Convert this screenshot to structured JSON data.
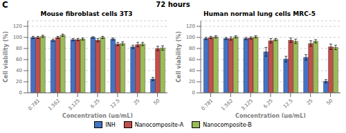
{
  "chart_data": [
    {
      "type": "bar",
      "title": "Mouse fibroblast cells 3T3",
      "annotations": [
        "C",
        "72 hours"
      ],
      "x_label": "Concentration (μg/mL)",
      "y_label": "Cell viability (%)",
      "categories": [
        "0.781",
        "1.562",
        "3.125",
        "6.25",
        "12.5",
        "25",
        "50"
      ],
      "ylim": [
        0,
        130
      ],
      "yticks": [
        0,
        20,
        40,
        60,
        80,
        100,
        120
      ],
      "grid": true,
      "series": [
        {
          "name": "INH",
          "color": "#4472C4",
          "values": [
            100,
            95,
            96,
            100,
            97,
            83,
            25
          ],
          "errors": [
            2,
            2,
            2,
            1.5,
            2,
            3,
            3
          ]
        },
        {
          "name": "Nanocomposite-A",
          "color": "#C0504D",
          "values": [
            100,
            100,
            96,
            95,
            88,
            87,
            80
          ],
          "errors": [
            2,
            2,
            2,
            3,
            3,
            4,
            4
          ]
        },
        {
          "name": "Nanocomposite-B",
          "color": "#9BBB59",
          "values": [
            102,
            104,
            97,
            100,
            89,
            88,
            81
          ],
          "errors": [
            2,
            2,
            2,
            2,
            3,
            3,
            4
          ]
        }
      ]
    },
    {
      "type": "bar",
      "title": "Human normal lung cells MRC-5",
      "x_label": "Concentration (μg/mL)",
      "y_label": "Cell viability (%)",
      "categories": [
        "0.781",
        "1.562",
        "3.125",
        "6.25",
        "12.5",
        "25",
        "50"
      ],
      "ylim": [
        0,
        130
      ],
      "yticks": [
        0,
        20,
        40,
        60,
        80,
        100,
        120
      ],
      "grid": true,
      "series": [
        {
          "name": "INH",
          "color": "#4472C4",
          "values": [
            98,
            98,
            98,
            74,
            61,
            64,
            21
          ],
          "errors": [
            2,
            2,
            2,
            8,
            5,
            5,
            3
          ]
        },
        {
          "name": "Nanocomposite-A",
          "color": "#C0504D",
          "values": [
            100,
            98,
            99,
            94,
            95,
            89,
            83
          ],
          "errors": [
            2,
            3,
            2,
            4,
            4,
            5,
            5
          ]
        },
        {
          "name": "Nanocomposite-B",
          "color": "#9BBB59",
          "values": [
            101,
            101,
            101,
            96,
            93,
            93,
            82
          ],
          "errors": [
            2,
            2,
            2,
            2,
            4,
            3,
            4
          ]
        }
      ]
    }
  ]
}
